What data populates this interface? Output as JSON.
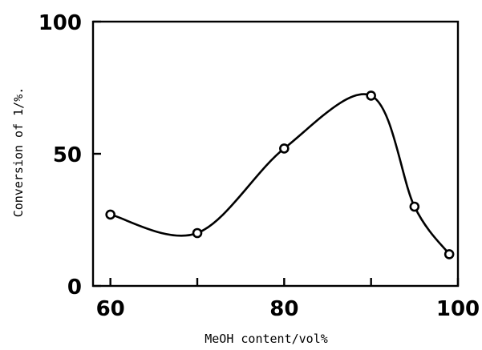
{
  "chart_data": {
    "type": "line",
    "title": "",
    "xlabel": "MeOH content/vol%",
    "ylabel": "Conversion of 1/%.",
    "xlim": [
      58,
      100
    ],
    "ylim": [
      0,
      100
    ],
    "x_ticks": [
      60,
      80,
      100
    ],
    "x_minor_ticks": [
      70,
      90
    ],
    "y_ticks": [
      0,
      50,
      100
    ],
    "x_tick_labels": [
      "60",
      "80",
      "100"
    ],
    "y_tick_labels": [
      "0",
      "50",
      "100"
    ],
    "grid": false,
    "legend": "none",
    "series": [
      {
        "marker": "open-circle",
        "line": "smooth",
        "x": [
          60,
          70,
          80,
          90,
          95,
          99
        ],
        "y": [
          27,
          20,
          52,
          72,
          30,
          12
        ]
      }
    ]
  }
}
